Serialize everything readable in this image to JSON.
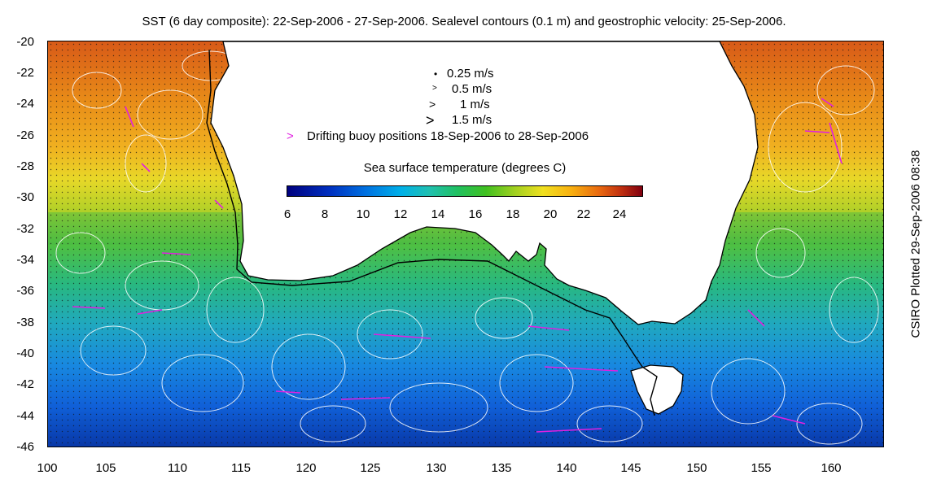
{
  "title": "SST (6 day composite): 22-Sep-2006 - 27-Sep-2006. Sealevel contours (0.1 m) and geostrophic velocity: 25-Sep-2006.",
  "side_label": "CSIRO Plotted 29-Sep-2006 08:38",
  "lat_ticks": [
    "-20",
    "-22",
    "-24",
    "-26",
    "-28",
    "-30",
    "-32",
    "-34",
    "-36",
    "-38",
    "-40",
    "-42",
    "-44",
    "-46"
  ],
  "lon_ticks": [
    "100",
    "105",
    "110",
    "115",
    "120",
    "125",
    "130",
    "135",
    "140",
    "145",
    "150",
    "155",
    "160"
  ],
  "legend": {
    "v025": "0.25 m/s",
    "v05": "0.5 m/s",
    "v1": "1 m/s",
    "v15": "1.5 m/s",
    "buoy_marker": ">",
    "buoy": "Drifting buoy positions 18-Sep-2006 to 28-Sep-2006",
    "arrow_small": "•",
    "arrow_med": ">",
    "arrow_large": ">",
    "arrow_xlarge": ">"
  },
  "colorbar": {
    "title": "Sea surface temperature (degrees C)",
    "ticks": [
      "6",
      "8",
      "10",
      "12",
      "14",
      "16",
      "18",
      "20",
      "22",
      "24"
    ]
  },
  "colors": {
    "land": "#ffffff",
    "coast": "#000000",
    "contour": "#ffffff",
    "buoy": "#e020e0"
  }
}
